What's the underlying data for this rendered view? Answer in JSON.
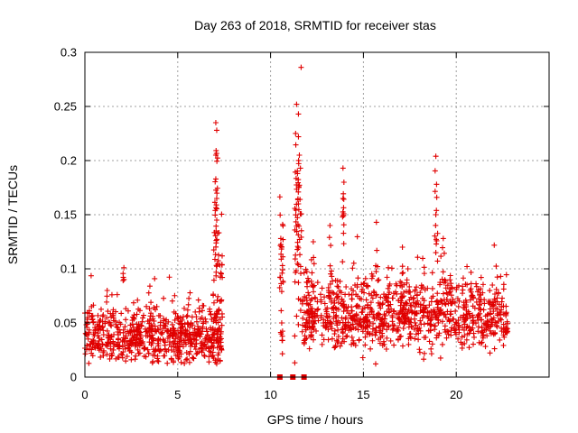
{
  "chart_data": {
    "type": "scatter",
    "title": "Day 263 of 2018, SRMTID for receiver stas",
    "xlabel": "GPS time / hours",
    "ylabel": "SRMTID / TECUs",
    "xlim": [
      0,
      25
    ],
    "ylim": [
      0,
      0.3
    ],
    "x_ticks": [
      0,
      5,
      10,
      15,
      20
    ],
    "x_tick_labels": [
      "0",
      "5",
      "10",
      "15",
      "20"
    ],
    "y_ticks": [
      0,
      0.05,
      0.1,
      0.15,
      0.2,
      0.25,
      0.3
    ],
    "y_tick_labels": [
      "0",
      "0.05",
      "0.1",
      "0.15",
      "0.2",
      "0.25",
      "0.3"
    ],
    "grid": true,
    "marker": "+",
    "series_color": "#e00000",
    "data_gap": {
      "start_hours": 7.4,
      "end_hours": 10.5
    },
    "zero_markers_x": [
      10.5,
      11.2,
      11.8
    ],
    "segments": [
      {
        "x_start": 0.0,
        "x_end": 7.4,
        "baseline": 0.038,
        "spread": 0.012,
        "spikes": [
          {
            "x": 2.1,
            "y": 0.101
          },
          {
            "x": 1.2,
            "y": 0.08
          },
          {
            "x": 3.5,
            "y": 0.084
          }
        ]
      },
      {
        "x_start": 6.9,
        "x_end": 7.4,
        "baseline": 0.09,
        "spread": 0.04,
        "spikes": [
          {
            "x": 7.05,
            "y": 0.235
          },
          {
            "x": 7.1,
            "y": 0.228
          },
          {
            "x": 7.05,
            "y": 0.205
          },
          {
            "x": 7.05,
            "y": 0.183
          },
          {
            "x": 7.1,
            "y": 0.165
          },
          {
            "x": 7.1,
            "y": 0.145
          }
        ]
      },
      {
        "x_start": 10.5,
        "x_end": 10.7,
        "baseline": 0.085,
        "spread": 0.03,
        "spikes": [
          {
            "x": 10.55,
            "y": 0.128
          },
          {
            "x": 10.6,
            "y": 0.12
          },
          {
            "x": 10.6,
            "y": 0.05
          }
        ]
      },
      {
        "x_start": 11.3,
        "x_end": 11.7,
        "baseline": 0.12,
        "spread": 0.05,
        "spikes": [
          {
            "x": 11.4,
            "y": 0.252
          },
          {
            "x": 11.5,
            "y": 0.243
          },
          {
            "x": 11.5,
            "y": 0.222
          },
          {
            "x": 11.55,
            "y": 0.205
          },
          {
            "x": 11.45,
            "y": 0.188
          },
          {
            "x": 11.5,
            "y": 0.16
          }
        ]
      },
      {
        "x_start": 11.7,
        "x_end": 22.8,
        "baseline": 0.058,
        "spread": 0.016,
        "spikes": [
          {
            "x": 13.9,
            "y": 0.193
          },
          {
            "x": 13.95,
            "y": 0.18
          },
          {
            "x": 13.9,
            "y": 0.165
          },
          {
            "x": 13.2,
            "y": 0.14
          },
          {
            "x": 15.7,
            "y": 0.143
          },
          {
            "x": 18.9,
            "y": 0.204
          },
          {
            "x": 18.95,
            "y": 0.166
          },
          {
            "x": 18.9,
            "y": 0.15
          },
          {
            "x": 19.3,
            "y": 0.128
          },
          {
            "x": 17.1,
            "y": 0.12
          },
          {
            "x": 12.3,
            "y": 0.125
          }
        ]
      }
    ]
  }
}
